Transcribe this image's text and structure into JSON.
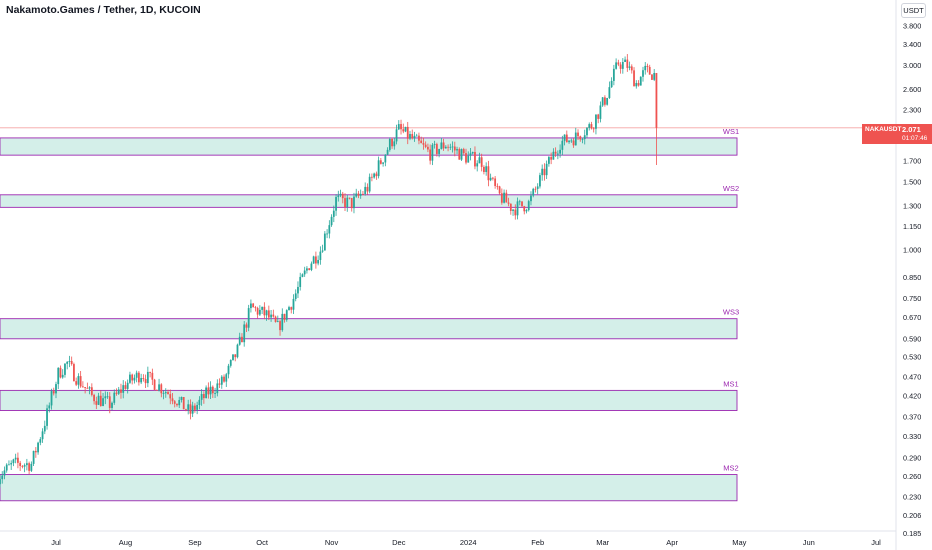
{
  "title": "Nakamoto.Games / Tether, 1D, KUCOIN",
  "currency": "USDT",
  "last_price": {
    "symbol": "NAKAUSDT",
    "price": "2.071",
    "countdown": "01:07:46"
  },
  "colors": {
    "up": "#26a69a",
    "down": "#ef5350",
    "zone_fill": "#d4efe9",
    "zone_border": "#9c27b0",
    "zone_label": "#9c27b0",
    "price_line": "#f5a3a3"
  },
  "chart_data": {
    "type": "candlestick",
    "y_scale": "log",
    "ylim": [
      0.175,
      4.2
    ],
    "y_ticks": [
      "3.800",
      "3.400",
      "3.000",
      "2.600",
      "2.300",
      "2.071",
      "1.700",
      "1.500",
      "1.300",
      "1.150",
      "1.000",
      "0.850",
      "0.750",
      "0.670",
      "0.590",
      "0.530",
      "0.470",
      "0.420",
      "0.370",
      "0.330",
      "0.290",
      "0.260",
      "0.230",
      "0.206",
      "0.185"
    ],
    "x_labels": [
      "Jul",
      "Aug",
      "Sep",
      "Oct",
      "Nov",
      "Dec",
      "2024",
      "Feb",
      "Mar",
      "Apr",
      "May",
      "Jun",
      "Jul"
    ],
    "zones": [
      {
        "name": "WS1",
        "low": 1.76,
        "high": 1.95
      },
      {
        "name": "WS2",
        "low": 1.29,
        "high": 1.39
      },
      {
        "name": "WS3",
        "low": 0.59,
        "high": 0.665
      },
      {
        "name": "MS1",
        "low": 0.385,
        "high": 0.434
      },
      {
        "name": "MS2",
        "low": 0.225,
        "high": 0.263
      }
    ],
    "close_anchors": [
      [
        "2023-06-05",
        0.26
      ],
      [
        "2023-06-12",
        0.28
      ],
      [
        "2023-06-20",
        0.28
      ],
      [
        "2023-06-26",
        0.36
      ],
      [
        "2023-07-02",
        0.48
      ],
      [
        "2023-07-06",
        0.51
      ],
      [
        "2023-07-10",
        0.47
      ],
      [
        "2023-07-17",
        0.42
      ],
      [
        "2023-07-25",
        0.4
      ],
      [
        "2023-08-01",
        0.45
      ],
      [
        "2023-08-08",
        0.48
      ],
      [
        "2023-08-15",
        0.45
      ],
      [
        "2023-08-22",
        0.42
      ],
      [
        "2023-08-30",
        0.38
      ],
      [
        "2023-09-07",
        0.43
      ],
      [
        "2023-09-14",
        0.46
      ],
      [
        "2023-09-20",
        0.55
      ],
      [
        "2023-09-26",
        0.71
      ],
      [
        "2023-10-03",
        0.68
      ],
      [
        "2023-10-08",
        0.63
      ],
      [
        "2023-10-15",
        0.75
      ],
      [
        "2023-10-22",
        0.92
      ],
      [
        "2023-10-27",
        1.0
      ],
      [
        "2023-11-03",
        1.35
      ],
      [
        "2023-11-10",
        1.32
      ],
      [
        "2023-11-17",
        1.45
      ],
      [
        "2023-11-27",
        1.88
      ],
      [
        "2023-12-01",
        2.05
      ],
      [
        "2023-12-08",
        1.92
      ],
      [
        "2023-12-15",
        1.78
      ],
      [
        "2023-12-22",
        1.88
      ],
      [
        "2023-12-31",
        1.74
      ],
      [
        "2024-01-07",
        1.7
      ],
      [
        "2024-01-14",
        1.4
      ],
      [
        "2024-01-21",
        1.28
      ],
      [
        "2024-01-28",
        1.32
      ],
      [
        "2024-02-04",
        1.6
      ],
      [
        "2024-02-11",
        1.9
      ],
      [
        "2024-02-18",
        1.96
      ],
      [
        "2024-02-25",
        2.1
      ],
      [
        "2024-03-02",
        2.45
      ],
      [
        "2024-03-08",
        3.05
      ],
      [
        "2024-03-12",
        3.0
      ],
      [
        "2024-03-16",
        2.7
      ],
      [
        "2024-03-20",
        2.9
      ],
      [
        "2024-03-24",
        2.85
      ],
      [
        "2024-03-25",
        2.071
      ]
    ],
    "big_wick": {
      "date": "2024-03-25",
      "low": 1.66
    }
  }
}
